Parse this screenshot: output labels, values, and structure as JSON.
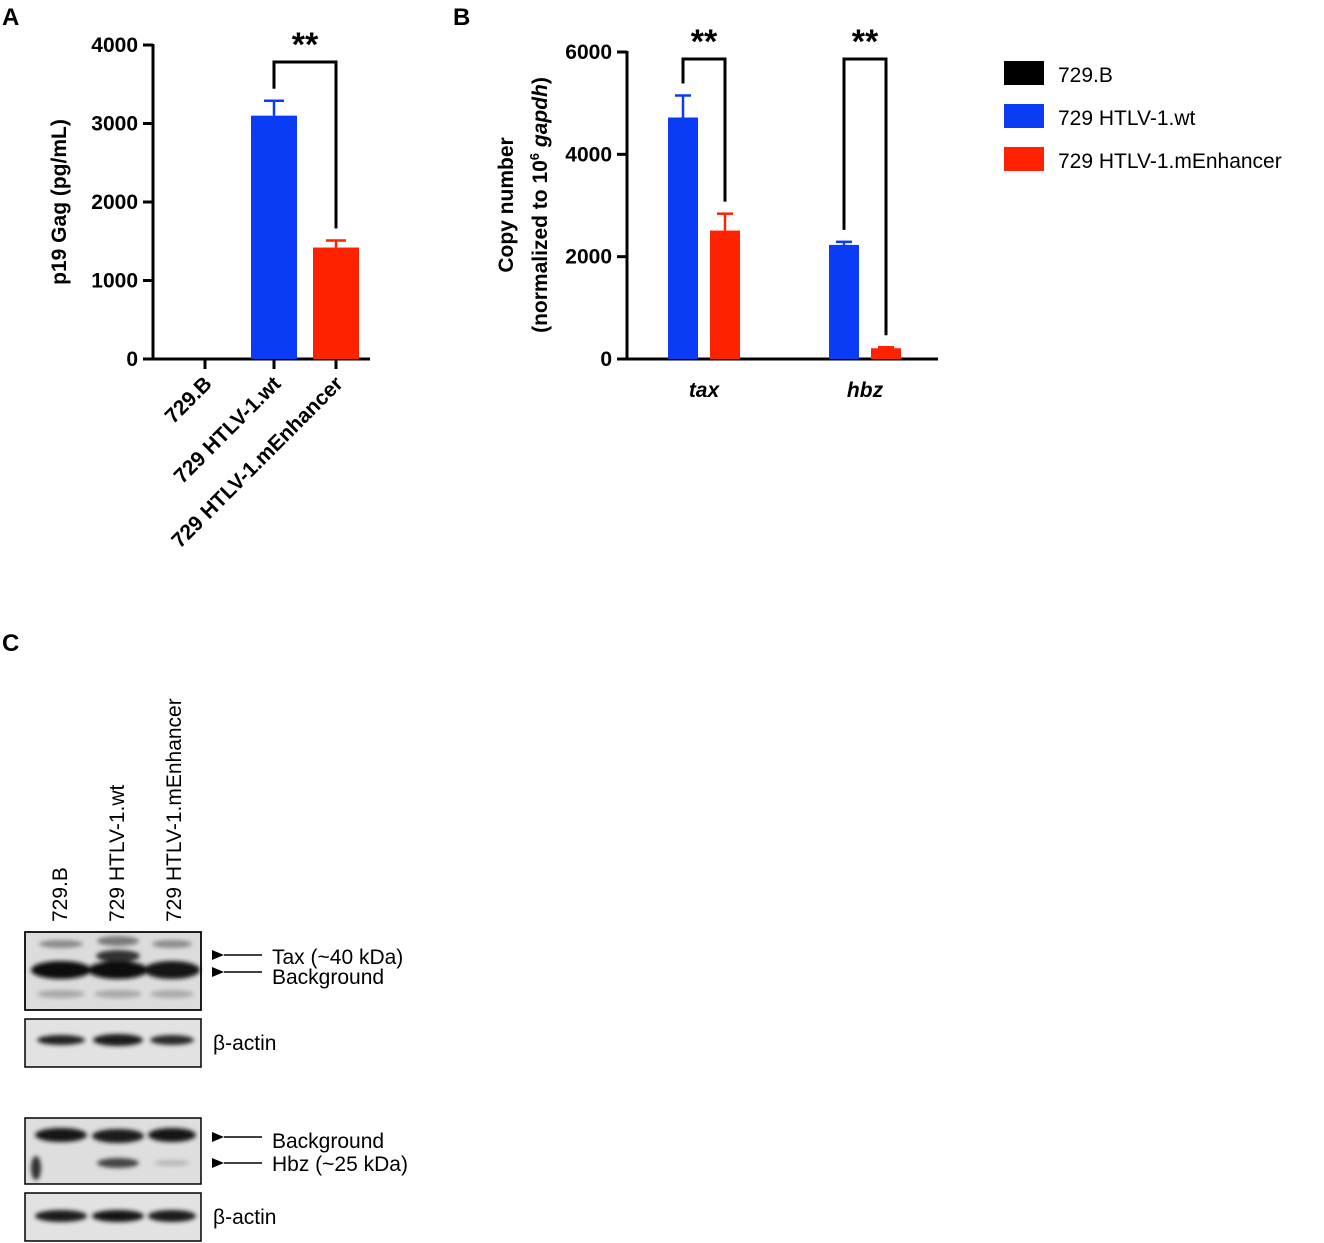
{
  "panels": {
    "a": "A",
    "b": "B",
    "c": "C"
  },
  "legend": [
    {
      "label": "729.B",
      "color": "#000000"
    },
    {
      "label": "729 HTLV-1.wt",
      "color": "#0a3cf5"
    },
    {
      "label": "729 HTLV-1.mEnhancer",
      "color": "#ff2200"
    }
  ],
  "chart_data": [
    {
      "panel": "A",
      "type": "bar",
      "ylabel": "p19 Gag (pg/mL)",
      "ylim": [
        0,
        4000
      ],
      "yticks": [
        0,
        1000,
        2000,
        3000,
        4000
      ],
      "categories": [
        "729.B",
        "729 HTLV-1.wt",
        "729 HTLV-1.mEnhancer"
      ],
      "values": [
        0,
        3100,
        1420
      ],
      "errors": [
        0,
        190,
        90
      ],
      "colors": [
        "#000000",
        "#0a3cf5",
        "#ff2200"
      ],
      "significance": [
        {
          "between": [
            1,
            2
          ],
          "label": "**"
        }
      ]
    },
    {
      "panel": "B",
      "type": "bar",
      "ylabel_line1": "Copy number",
      "ylabel_line2_prefix": "(normalized to 10",
      "ylabel_sup": "6",
      "ylabel_italic": "gapdh",
      "ylabel_close": ")",
      "ylim": [
        0,
        6000
      ],
      "yticks": [
        0,
        2000,
        4000,
        6000
      ],
      "categories": [
        "tax",
        "hbz"
      ],
      "series": [
        {
          "name": "729.B",
          "values": [
            0,
            0
          ],
          "errors": [
            0,
            0
          ],
          "color": "#000000"
        },
        {
          "name": "729 HTLV-1.wt",
          "values": [
            4720,
            2230
          ],
          "errors": [
            430,
            60
          ],
          "color": "#0a3cf5"
        },
        {
          "name": "729 HTLV-1.mEnhancer",
          "values": [
            2510,
            210
          ],
          "errors": [
            330,
            20
          ],
          "color": "#ff2200"
        }
      ],
      "significance": [
        {
          "category": 0,
          "label": "**"
        },
        {
          "category": 1,
          "label": "**"
        }
      ]
    }
  ],
  "blots": {
    "lanes": [
      "729.B",
      "729 HTLV-1.wt",
      "729 HTLV-1.mEnhancer"
    ],
    "tax_labels": [
      "Tax (~40 kDa)",
      "Background"
    ],
    "hbz_labels": [
      "Background",
      "Hbz (~25 kDa)"
    ],
    "actin_label": "β-actin"
  }
}
